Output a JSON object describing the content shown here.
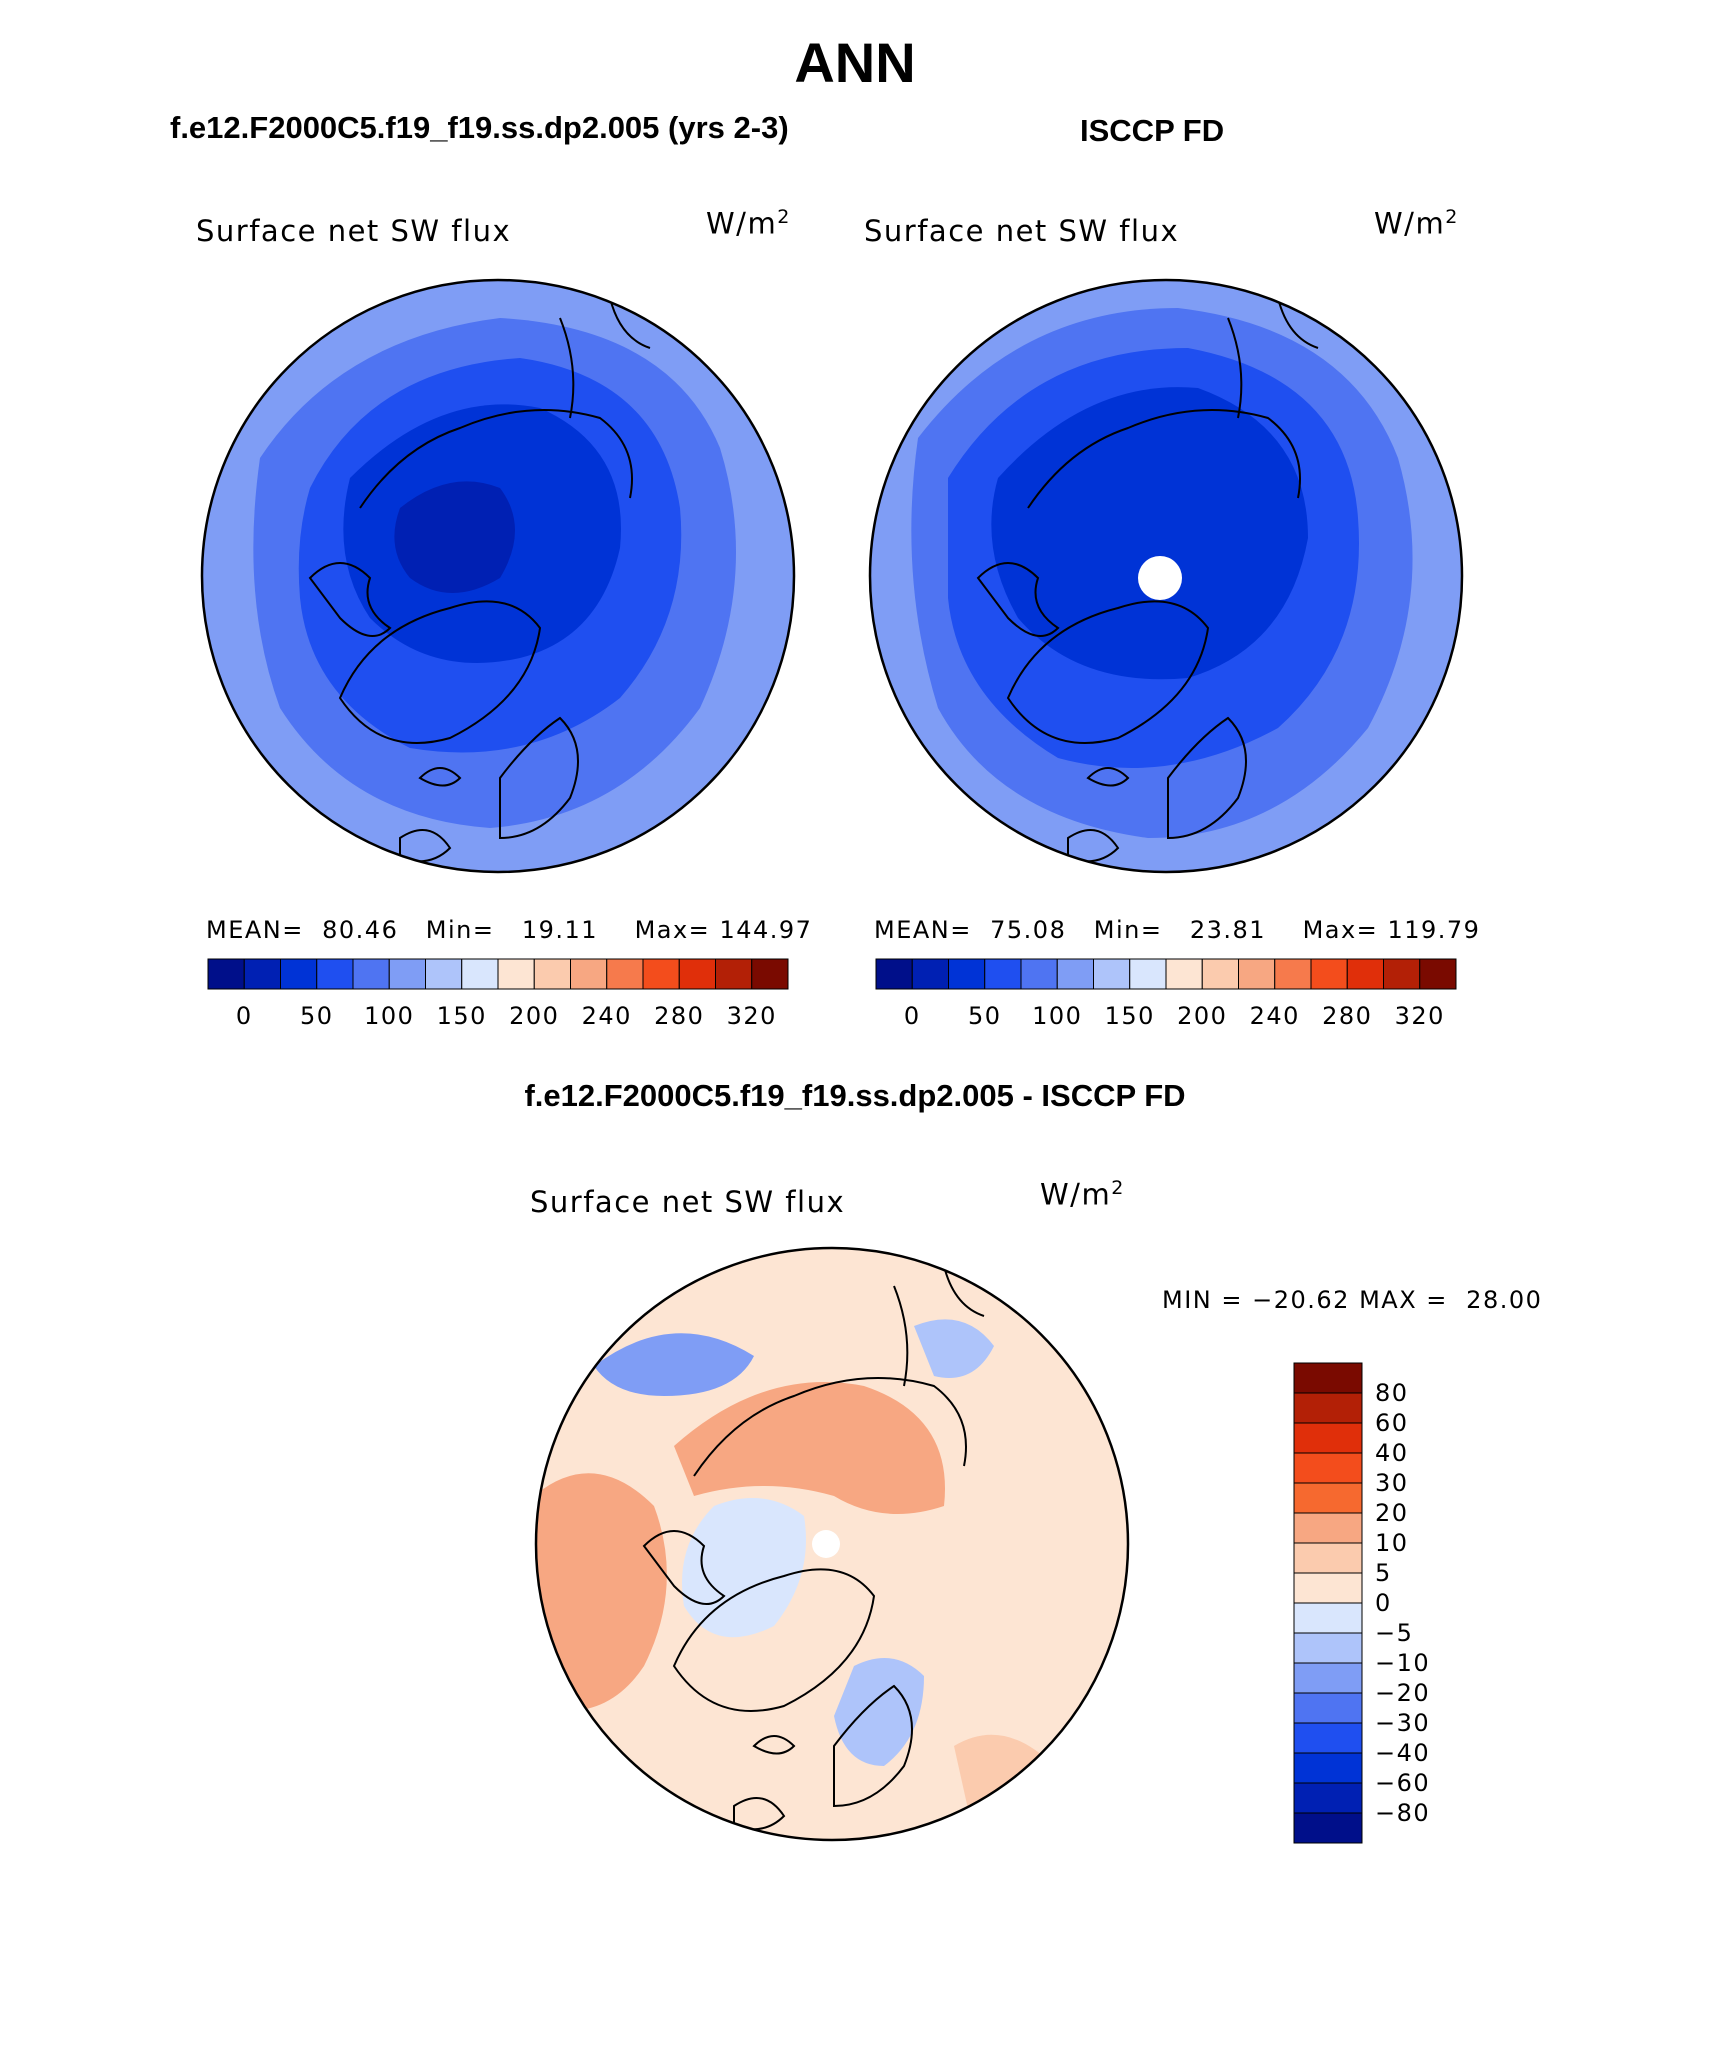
{
  "title": "ANN",
  "panels": {
    "case": {
      "header": "f.e12.F2000C5.f19_f19.ss.dp2.005 (yrs 2-3)",
      "variable": "Surface net SW flux",
      "unit_base": "W/m",
      "unit_exp": "2",
      "stats": {
        "mean_label": "MEAN=",
        "mean": "80.46",
        "min_label": "Min=",
        "min": "19.11",
        "max_label": "Max=",
        "max": "144.97"
      },
      "colorbar_ticks": [
        "0",
        "50",
        "100",
        "150",
        "200",
        "240",
        "280",
        "320"
      ]
    },
    "obs": {
      "header": "ISCCP FD",
      "variable": "Surface net SW flux",
      "unit_base": "W/m",
      "unit_exp": "2",
      "stats": {
        "mean_label": "MEAN=",
        "mean": "75.08",
        "min_label": "Min=",
        "min": "23.81",
        "max_label": "Max=",
        "max": "119.79"
      },
      "colorbar_ticks": [
        "0",
        "50",
        "100",
        "150",
        "200",
        "240",
        "280",
        "320"
      ]
    },
    "diff": {
      "header": "f.e12.F2000C5.f19_f19.ss.dp2.005 - ISCCP FD",
      "variable": "Surface net SW flux",
      "unit_base": "W/m",
      "unit_exp": "2",
      "stats": {
        "min_label": "MIN =",
        "min": "−20.62",
        "max_label": "MAX =",
        "max": "28.00"
      },
      "colorbar_ticks": [
        "80",
        "60",
        "40",
        "30",
        "20",
        "10",
        "5",
        "0",
        "−5",
        "−10",
        "−20",
        "−30",
        "−40",
        "−60",
        "−80"
      ]
    }
  },
  "colors": {
    "abs_scale": [
      "#000f8a",
      "#0020b3",
      "#0033d6",
      "#1f4ff0",
      "#4f74f2",
      "#7f9df5",
      "#aec4fa",
      "#d9e6fd",
      "#fde5d3",
      "#fbcbae",
      "#f7a782",
      "#f67a4c",
      "#f34d1c",
      "#e02f0a",
      "#b32006",
      "#7a0a00"
    ],
    "diff_scale": [
      "#7a0a00",
      "#b32006",
      "#e02f0a",
      "#f34d1c",
      "#f6692f",
      "#f7a782",
      "#fbcbae",
      "#fde5d3",
      "#d9e6fd",
      "#aec4fa",
      "#7f9df5",
      "#4f74f2",
      "#1f4ff0",
      "#0033d6",
      "#0020b3",
      "#000f8a"
    ]
  },
  "icons": {
    "map_panel": "north-polar-stereographic-map-icon"
  }
}
